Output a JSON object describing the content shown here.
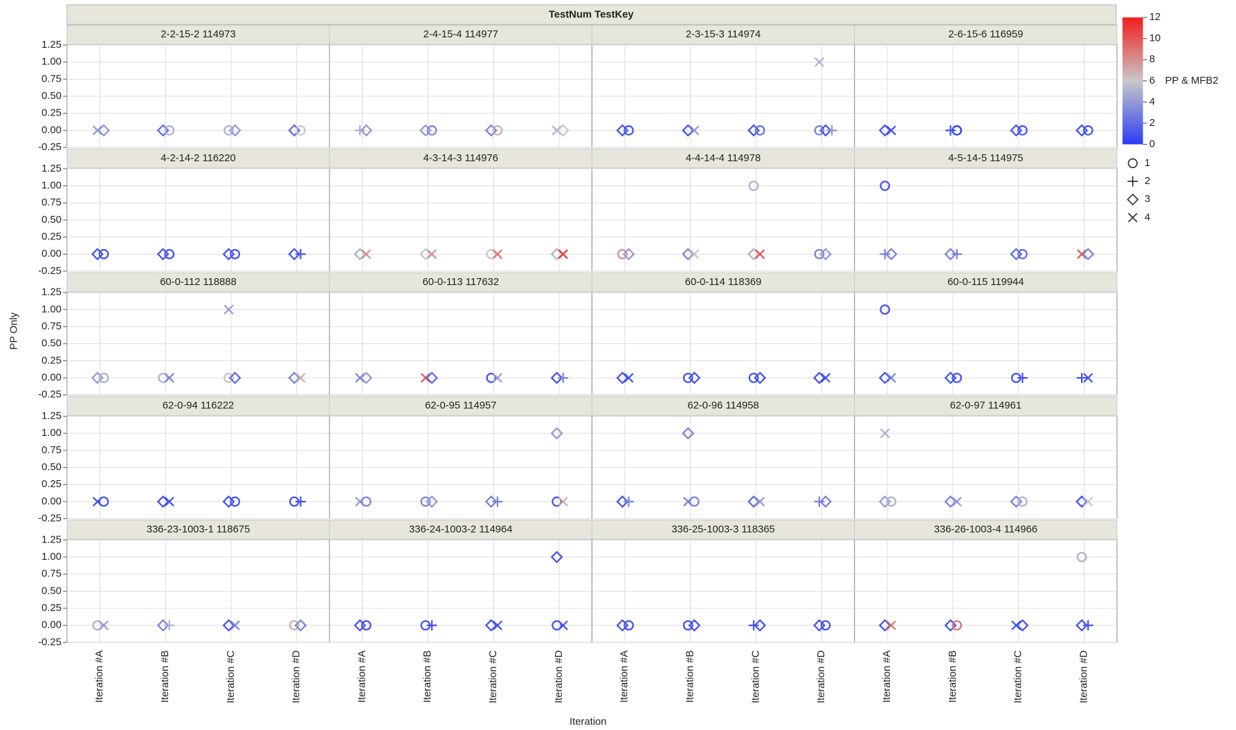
{
  "chart_data": {
    "type": "trellis-scatter",
    "header": "TestNum TestKey",
    "xlabel": "Iteration",
    "ylabel": "PP Only",
    "categories": [
      "Iteration #A",
      "Iteration #B",
      "Iteration #C",
      "Iteration #D"
    ],
    "ylim": [
      -0.25,
      1.25
    ],
    "yticks": [
      -0.25,
      {
        "value": 0,
        "label": "0.00"
      },
      0.25,
      {
        "value": 0.5,
        "label": "0.50"
      },
      0.75,
      {
        "value": 1,
        "label": "1.00"
      },
      1.25
    ],
    "grid": true,
    "color_scale": {
      "title": "PP & MFB2",
      "lim": [
        0,
        12
      ],
      "ticks": [
        0,
        2,
        4,
        6,
        8,
        10,
        12
      ],
      "colors": [
        "#2b3cf5",
        "#c8c8c8",
        "#f21d1d"
      ]
    },
    "shape_legend": [
      {
        "label": "1",
        "symbol": "circle"
      },
      {
        "label": "2",
        "symbol": "plus"
      },
      {
        "label": "3",
        "symbol": "diamond"
      },
      {
        "label": "4",
        "symbol": "cross"
      }
    ],
    "panels": [
      {
        "title": "2-2-15-2 114973",
        "points": [
          [
            "Iteration #A",
            0,
            "4",
            4
          ],
          [
            "Iteration #A",
            0,
            "3",
            4
          ],
          [
            "Iteration #B",
            0,
            "3",
            2
          ],
          [
            "Iteration #B",
            0,
            "1",
            5
          ],
          [
            "Iteration #C",
            0,
            "1",
            5
          ],
          [
            "Iteration #C",
            0,
            "3",
            4
          ],
          [
            "Iteration #D",
            0,
            "3",
            2
          ],
          [
            "Iteration #D",
            0,
            "1",
            6
          ]
        ]
      },
      {
        "title": "2-4-15-4 114977",
        "points": [
          [
            "Iteration #A",
            0,
            "2",
            5
          ],
          [
            "Iteration #A",
            0,
            "3",
            4
          ],
          [
            "Iteration #B",
            0,
            "3",
            4
          ],
          [
            "Iteration #B",
            0,
            "1",
            3
          ],
          [
            "Iteration #C",
            0,
            "3",
            3
          ],
          [
            "Iteration #C",
            0,
            "1",
            7
          ],
          [
            "Iteration #D",
            0,
            "4",
            5
          ],
          [
            "Iteration #D",
            0,
            "3",
            6
          ]
        ]
      },
      {
        "title": "2-3-15-3 114974",
        "points": [
          [
            "Iteration #A",
            0,
            "3",
            1
          ],
          [
            "Iteration #A",
            0,
            "1",
            1
          ],
          [
            "Iteration #B",
            0,
            "3",
            1
          ],
          [
            "Iteration #B",
            0,
            "4",
            4
          ],
          [
            "Iteration #C",
            0,
            "3",
            1
          ],
          [
            "Iteration #C",
            0,
            "1",
            2
          ],
          [
            "Iteration #D",
            0,
            "1",
            3
          ],
          [
            "Iteration #D",
            0,
            "3",
            1
          ],
          [
            "Iteration #D",
            0,
            "2",
            4
          ],
          [
            "Iteration #D",
            1,
            "4",
            5
          ]
        ]
      },
      {
        "title": "2-6-15-6 116959",
        "points": [
          [
            "Iteration #A",
            0,
            "3",
            1
          ],
          [
            "Iteration #A",
            0,
            "4",
            1
          ],
          [
            "Iteration #B",
            0,
            "2",
            1
          ],
          [
            "Iteration #B",
            0,
            "1",
            0
          ],
          [
            "Iteration #C",
            0,
            "3",
            1
          ],
          [
            "Iteration #C",
            0,
            "1",
            1
          ],
          [
            "Iteration #D",
            0,
            "3",
            1
          ],
          [
            "Iteration #D",
            0,
            "1",
            1
          ]
        ]
      },
      {
        "title": "4-2-14-2 116220",
        "points": [
          [
            "Iteration #A",
            0,
            "3",
            1
          ],
          [
            "Iteration #A",
            0,
            "1",
            1
          ],
          [
            "Iteration #B",
            0,
            "3",
            1
          ],
          [
            "Iteration #B",
            0,
            "1",
            1
          ],
          [
            "Iteration #C",
            0,
            "3",
            1
          ],
          [
            "Iteration #C",
            0,
            "1",
            1
          ],
          [
            "Iteration #D",
            0,
            "3",
            1
          ],
          [
            "Iteration #D",
            0,
            "2",
            1
          ]
        ]
      },
      {
        "title": "4-3-14-3 114976",
        "points": [
          [
            "Iteration #A",
            0,
            "3",
            5
          ],
          [
            "Iteration #A",
            0,
            "4",
            8
          ],
          [
            "Iteration #B",
            0,
            "3",
            6
          ],
          [
            "Iteration #B",
            0,
            "4",
            8
          ],
          [
            "Iteration #C",
            0,
            "1",
            6
          ],
          [
            "Iteration #C",
            0,
            "4",
            9
          ],
          [
            "Iteration #D",
            0,
            "3",
            5
          ],
          [
            "Iteration #D",
            0,
            "4",
            11
          ]
        ]
      },
      {
        "title": "4-4-14-4 114978",
        "points": [
          [
            "Iteration #A",
            0,
            "1",
            8
          ],
          [
            "Iteration #A",
            0,
            "3",
            4
          ],
          [
            "Iteration #B",
            0,
            "3",
            3
          ],
          [
            "Iteration #B",
            0,
            "4",
            6
          ],
          [
            "Iteration #C",
            0,
            "3",
            5
          ],
          [
            "Iteration #C",
            0,
            "4",
            10
          ],
          [
            "Iteration #C",
            1,
            "1",
            5
          ],
          [
            "Iteration #D",
            0,
            "1",
            3
          ],
          [
            "Iteration #D",
            0,
            "3",
            4
          ]
        ]
      },
      {
        "title": "4-5-14-5 114975",
        "points": [
          [
            "Iteration #A",
            0,
            "2",
            3
          ],
          [
            "Iteration #A",
            0,
            "3",
            3
          ],
          [
            "Iteration #A",
            1,
            "1",
            1
          ],
          [
            "Iteration #B",
            0,
            "3",
            3
          ],
          [
            "Iteration #B",
            0,
            "2",
            3
          ],
          [
            "Iteration #C",
            0,
            "3",
            2
          ],
          [
            "Iteration #C",
            0,
            "1",
            2
          ],
          [
            "Iteration #D",
            0,
            "4",
            10
          ],
          [
            "Iteration #D",
            0,
            "3",
            3
          ]
        ]
      },
      {
        "title": "60-0-112 118888",
        "points": [
          [
            "Iteration #A",
            0,
            "3",
            4
          ],
          [
            "Iteration #A",
            0,
            "1",
            5
          ],
          [
            "Iteration #B",
            0,
            "1",
            5
          ],
          [
            "Iteration #B",
            0,
            "4",
            3
          ],
          [
            "Iteration #C",
            0,
            "1",
            6
          ],
          [
            "Iteration #C",
            0,
            "3",
            2
          ],
          [
            "Iteration #C",
            1,
            "4",
            4
          ],
          [
            "Iteration #D",
            0,
            "3",
            3
          ],
          [
            "Iteration #D",
            0,
            "4",
            7
          ]
        ]
      },
      {
        "title": "60-0-113 117632",
        "points": [
          [
            "Iteration #A",
            0,
            "4",
            3
          ],
          [
            "Iteration #A",
            0,
            "3",
            4
          ],
          [
            "Iteration #B",
            0,
            "4",
            10
          ],
          [
            "Iteration #B",
            0,
            "3",
            2
          ],
          [
            "Iteration #C",
            0,
            "1",
            1
          ],
          [
            "Iteration #C",
            0,
            "4",
            4
          ],
          [
            "Iteration #D",
            0,
            "3",
            1
          ],
          [
            "Iteration #D",
            0,
            "2",
            3
          ]
        ]
      },
      {
        "title": "60-0-114 118369",
        "points": [
          [
            "Iteration #A",
            0,
            "3",
            1
          ],
          [
            "Iteration #A",
            0,
            "4",
            1
          ],
          [
            "Iteration #B",
            0,
            "1",
            1
          ],
          [
            "Iteration #B",
            0,
            "3",
            1
          ],
          [
            "Iteration #C",
            0,
            "1",
            1
          ],
          [
            "Iteration #C",
            0,
            "3",
            1
          ],
          [
            "Iteration #D",
            0,
            "3",
            1
          ],
          [
            "Iteration #D",
            0,
            "4",
            1
          ]
        ]
      },
      {
        "title": "60-0-115 119944",
        "points": [
          [
            "Iteration #A",
            0,
            "3",
            1
          ],
          [
            "Iteration #A",
            0,
            "4",
            3
          ],
          [
            "Iteration #A",
            1,
            "1",
            1
          ],
          [
            "Iteration #B",
            0,
            "3",
            1
          ],
          [
            "Iteration #B",
            0,
            "1",
            1
          ],
          [
            "Iteration #C",
            0,
            "1",
            1
          ],
          [
            "Iteration #C",
            0,
            "2",
            1
          ],
          [
            "Iteration #D",
            0,
            "2",
            1
          ],
          [
            "Iteration #D",
            0,
            "4",
            1
          ]
        ]
      },
      {
        "title": "62-0-94 116222",
        "points": [
          [
            "Iteration #A",
            0,
            "4",
            1
          ],
          [
            "Iteration #A",
            0,
            "1",
            1
          ],
          [
            "Iteration #B",
            0,
            "3",
            1
          ],
          [
            "Iteration #B",
            0,
            "4",
            1
          ],
          [
            "Iteration #C",
            0,
            "3",
            1
          ],
          [
            "Iteration #C",
            0,
            "1",
            1
          ],
          [
            "Iteration #D",
            0,
            "1",
            1
          ],
          [
            "Iteration #D",
            0,
            "2",
            1
          ]
        ]
      },
      {
        "title": "62-0-95 114957",
        "points": [
          [
            "Iteration #A",
            0,
            "4",
            4
          ],
          [
            "Iteration #A",
            0,
            "1",
            3
          ],
          [
            "Iteration #B",
            0,
            "1",
            3
          ],
          [
            "Iteration #B",
            0,
            "3",
            4
          ],
          [
            "Iteration #C",
            0,
            "3",
            3
          ],
          [
            "Iteration #C",
            0,
            "2",
            3
          ],
          [
            "Iteration #D",
            0,
            "1",
            1
          ],
          [
            "Iteration #D",
            0,
            "4",
            7
          ],
          [
            "Iteration #D",
            1,
            "3",
            4
          ]
        ]
      },
      {
        "title": "62-0-96 114958",
        "points": [
          [
            "Iteration #A",
            0,
            "3",
            1
          ],
          [
            "Iteration #A",
            0,
            "2",
            3
          ],
          [
            "Iteration #B",
            0,
            "4",
            3
          ],
          [
            "Iteration #B",
            0,
            "1",
            3
          ],
          [
            "Iteration #B",
            1,
            "3",
            3
          ],
          [
            "Iteration #C",
            0,
            "3",
            2
          ],
          [
            "Iteration #C",
            0,
            "4",
            4
          ],
          [
            "Iteration #D",
            0,
            "2",
            3
          ],
          [
            "Iteration #D",
            0,
            "3",
            3
          ]
        ]
      },
      {
        "title": "62-0-97 114961",
        "points": [
          [
            "Iteration #A",
            0,
            "3",
            4
          ],
          [
            "Iteration #A",
            0,
            "1",
            5
          ],
          [
            "Iteration #A",
            1,
            "4",
            5
          ],
          [
            "Iteration #B",
            0,
            "3",
            3
          ],
          [
            "Iteration #B",
            0,
            "4",
            4
          ],
          [
            "Iteration #C",
            0,
            "3",
            3
          ],
          [
            "Iteration #C",
            0,
            "1",
            5
          ],
          [
            "Iteration #D",
            0,
            "3",
            1
          ],
          [
            "Iteration #D",
            0,
            "4",
            6
          ]
        ]
      },
      {
        "title": "336-23-1003-1 118675",
        "points": [
          [
            "Iteration #A",
            0,
            "1",
            5
          ],
          [
            "Iteration #A",
            0,
            "4",
            4
          ],
          [
            "Iteration #B",
            0,
            "3",
            3
          ],
          [
            "Iteration #B",
            0,
            "2",
            5
          ],
          [
            "Iteration #C",
            0,
            "3",
            1
          ],
          [
            "Iteration #C",
            0,
            "4",
            3
          ],
          [
            "Iteration #D",
            0,
            "1",
            7
          ],
          [
            "Iteration #D",
            0,
            "3",
            3
          ]
        ]
      },
      {
        "title": "336-24-1003-2 114964",
        "points": [
          [
            "Iteration #A",
            0,
            "3",
            1
          ],
          [
            "Iteration #A",
            0,
            "1",
            1
          ],
          [
            "Iteration #B",
            0,
            "1",
            1
          ],
          [
            "Iteration #B",
            0,
            "2",
            1
          ],
          [
            "Iteration #C",
            0,
            "3",
            1
          ],
          [
            "Iteration #C",
            0,
            "4",
            1
          ],
          [
            "Iteration #D",
            0,
            "1",
            1
          ],
          [
            "Iteration #D",
            0,
            "4",
            1
          ],
          [
            "Iteration #D",
            1,
            "3",
            1
          ]
        ]
      },
      {
        "title": "336-25-1003-3 118365",
        "points": [
          [
            "Iteration #A",
            0,
            "3",
            1
          ],
          [
            "Iteration #A",
            0,
            "1",
            1
          ],
          [
            "Iteration #B",
            0,
            "1",
            1
          ],
          [
            "Iteration #B",
            0,
            "3",
            1
          ],
          [
            "Iteration #C",
            0,
            "2",
            1
          ],
          [
            "Iteration #C",
            0,
            "3",
            1
          ],
          [
            "Iteration #D",
            0,
            "3",
            1
          ],
          [
            "Iteration #D",
            0,
            "1",
            1
          ]
        ]
      },
      {
        "title": "336-26-1003-4 114966",
        "points": [
          [
            "Iteration #A",
            0,
            "3",
            1
          ],
          [
            "Iteration #A",
            0,
            "4",
            9
          ],
          [
            "Iteration #B",
            0,
            "3",
            1
          ],
          [
            "Iteration #B",
            0,
            "1",
            9
          ],
          [
            "Iteration #C",
            0,
            "4",
            1
          ],
          [
            "Iteration #C",
            0,
            "3",
            1
          ],
          [
            "Iteration #D",
            0,
            "3",
            1
          ],
          [
            "Iteration #D",
            0,
            "2",
            1
          ],
          [
            "Iteration #D",
            1,
            "1",
            5
          ]
        ]
      }
    ]
  }
}
